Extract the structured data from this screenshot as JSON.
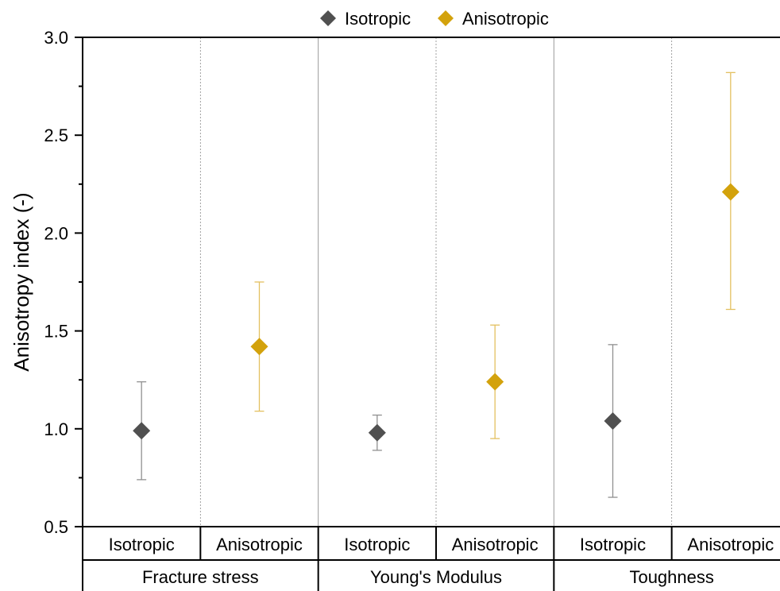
{
  "chart_data": {
    "type": "scatter",
    "ylabel": "Anisotropy index (-)",
    "ylim": [
      0.5,
      3.0
    ],
    "yticks": [
      "0.5",
      "1.0",
      "1.5",
      "2.0",
      "2.5",
      "3.0"
    ],
    "grid": false,
    "legend_position": "top-center",
    "groups": [
      "Fracture stress",
      "Young's Modulus",
      "Toughness"
    ],
    "subcategories": [
      "Isotropic",
      "Anisotropic"
    ],
    "series": [
      {
        "name": "Isotropic",
        "color": "#505050",
        "errorbar_color": "#909090",
        "marker": "diamond",
        "values": [
          0.99,
          0.98,
          1.04
        ],
        "lower": [
          0.74,
          0.89,
          0.65
        ],
        "upper": [
          1.24,
          1.07,
          1.43
        ]
      },
      {
        "name": "Anisotropic",
        "color": "#d3a20c",
        "errorbar_color": "#e3c060",
        "marker": "diamond",
        "values": [
          1.42,
          1.24,
          2.21
        ],
        "lower": [
          1.09,
          0.95,
          1.61
        ],
        "upper": [
          1.75,
          1.53,
          2.82
        ]
      }
    ]
  }
}
